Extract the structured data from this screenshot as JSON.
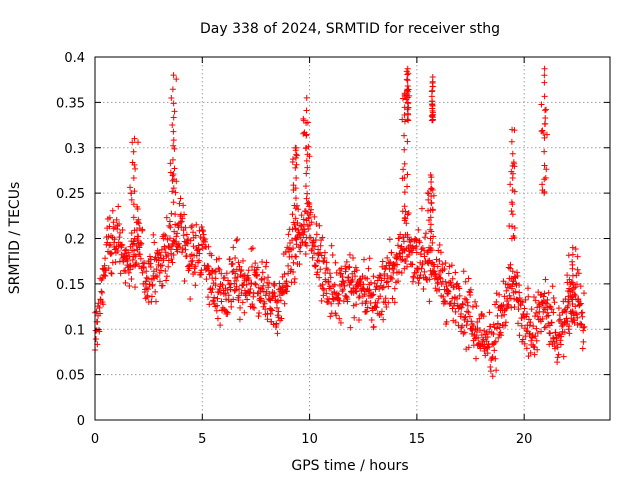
{
  "chart_data": {
    "type": "scatter",
    "title": "Day 338 of 2024, SRMTID for receiver sthg",
    "xlabel": "GPS time / hours",
    "ylabel": "SRMTID / TECUs",
    "xlim": [
      0,
      24
    ],
    "ylim": [
      0,
      0.4
    ],
    "xticks": [
      0,
      5,
      10,
      15,
      20
    ],
    "xtick_labels": [
      "0",
      "5",
      "10",
      "15",
      "20"
    ],
    "yticks": [
      0,
      0.05,
      0.1,
      0.15,
      0.2,
      0.25,
      0.3,
      0.35,
      0.4
    ],
    "ytick_labels": [
      "0",
      "0.05",
      "0.1",
      "0.15",
      "0.2",
      "0.25",
      "0.3",
      "0.35",
      "0.4"
    ],
    "grid": true,
    "marker": "+",
    "color": "#ff0000",
    "series": [
      {
        "name": "SRMTID",
        "trend": {
          "x": [
            0.0,
            0.3,
            0.6,
            1.0,
            1.5,
            2.0,
            2.5,
            3.0,
            3.5,
            4.0,
            4.5,
            5.0,
            5.5,
            6.0,
            6.5,
            7.0,
            7.5,
            8.0,
            8.5,
            9.0,
            9.5,
            10.0,
            10.5,
            11.0,
            11.5,
            12.0,
            12.5,
            13.0,
            13.5,
            14.0,
            14.5,
            15.0,
            15.5,
            16.0,
            16.5,
            17.0,
            17.5,
            18.0,
            18.5,
            19.0,
            19.5,
            20.0,
            20.5,
            21.0,
            21.5,
            22.0,
            22.5,
            22.8
          ],
          "y": [
            0.1,
            0.14,
            0.19,
            0.2,
            0.17,
            0.19,
            0.15,
            0.17,
            0.2,
            0.21,
            0.18,
            0.19,
            0.15,
            0.13,
            0.16,
            0.14,
            0.15,
            0.14,
            0.12,
            0.17,
            0.2,
            0.22,
            0.17,
            0.14,
            0.15,
            0.15,
            0.14,
            0.13,
            0.15,
            0.17,
            0.2,
            0.17,
            0.18,
            0.16,
            0.14,
            0.13,
            0.11,
            0.09,
            0.09,
            0.12,
            0.15,
            0.1,
            0.1,
            0.13,
            0.09,
            0.12,
            0.13,
            0.11
          ]
        },
        "bursts": [
          {
            "x": [
              1.6,
              2.05
            ],
            "y": [
              0.18,
              0.31
            ]
          },
          {
            "x": [
              3.5,
              3.8
            ],
            "y": [
              0.24,
              0.38
            ]
          },
          {
            "x": [
              9.2,
              9.5
            ],
            "y": [
              0.2,
              0.3
            ]
          },
          {
            "x": [
              9.7,
              10.0
            ],
            "y": [
              0.23,
              0.355
            ]
          },
          {
            "x": [
              14.25,
              14.6
            ],
            "y": [
              0.22,
              0.36
            ]
          },
          {
            "x": [
              14.5,
              14.65
            ],
            "y": [
              0.33,
              0.387
            ]
          },
          {
            "x": [
              15.5,
              15.8
            ],
            "y": [
              0.2,
              0.27
            ]
          },
          {
            "x": [
              15.7,
              15.75
            ],
            "y": [
              0.33,
              0.378
            ]
          },
          {
            "x": [
              19.3,
              19.6
            ],
            "y": [
              0.2,
              0.32
            ]
          },
          {
            "x": [
              20.8,
              21.1
            ],
            "y": [
              0.25,
              0.387
            ]
          },
          {
            "x": [
              22.0,
              22.5
            ],
            "y": [
              0.12,
              0.19
            ]
          }
        ]
      }
    ]
  }
}
